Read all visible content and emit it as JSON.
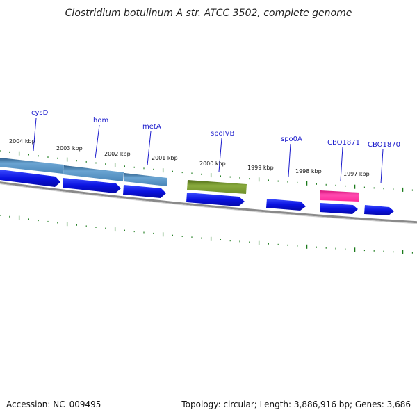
{
  "title": "Clostridium botulinum A str. ATCC 3502, complete genome",
  "footer": {
    "accession": "Accession: NC_009495",
    "summary": "Topology: circular; Length: 3,886,916 bp; Genes: 3,686"
  },
  "colors": {
    "gene_arrow": "#0a12e0",
    "feature_steelblue": "#4a86b8",
    "feature_olive": "#6e8f2a",
    "feature_pink": "#ff2a9a",
    "tick": "#1a7a1a",
    "backbone": "#888888",
    "label": "#1a1acc"
  },
  "gene_labels": [
    "cysD",
    "hom",
    "metA",
    "spoIVB",
    "spo0A",
    "CBO1871",
    "CBO1870"
  ],
  "kbp_labels": [
    "2004 kbp",
    "2003 kbp",
    "2002 kbp",
    "2001 kbp",
    "2000 kbp",
    "1999 kbp",
    "1998 kbp",
    "1997 kbp"
  ]
}
